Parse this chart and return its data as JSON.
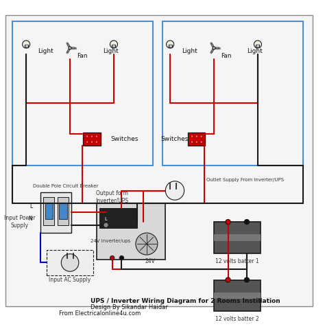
{
  "title": "UPS / Inverter Wiring Diagram for 2 Rooms Instillation",
  "subtitle1": "Design By Sikandar Haidar",
  "subtitle2": "From Electricalonline4u.com",
  "bg_color": "#ffffff",
  "room_border_color": "#4a90d9",
  "wire_red": "#cc0000",
  "wire_black": "#1a1a1a",
  "wire_blue": "#0000cc",
  "switch_box_color": "#cc0000",
  "watermark_color": "#aed6f1",
  "outer_border_color": "#888888",
  "fig_width": 4.74,
  "fig_height": 4.82,
  "dpi": 100,
  "room1_label_light_left": "Light",
  "room1_label_fan": "Fan",
  "room1_label_light_right": "Light",
  "room1_label_switches": "Switches",
  "room2_label_light_left": "Light",
  "room2_label_fan": "Fan",
  "room2_label_light_right": "Light",
  "room2_label_switches": "Switches",
  "label_input_power": "Input Power\nSupply",
  "label_dpb": "Double Pole Circuit Breaker",
  "label_output_form": "Output form\nInverter/UPS",
  "label_24v_inv": "24V Inverter/ups",
  "label_input_ac": "Input AC Supply",
  "label_outlet_supply": "Outlet Supply From Inverter/UPS",
  "label_24v": "24V",
  "label_battery1": "12 volts batter 1",
  "label_battery2": "12 volts batter 2",
  "label_N": "N",
  "label_L": "L"
}
